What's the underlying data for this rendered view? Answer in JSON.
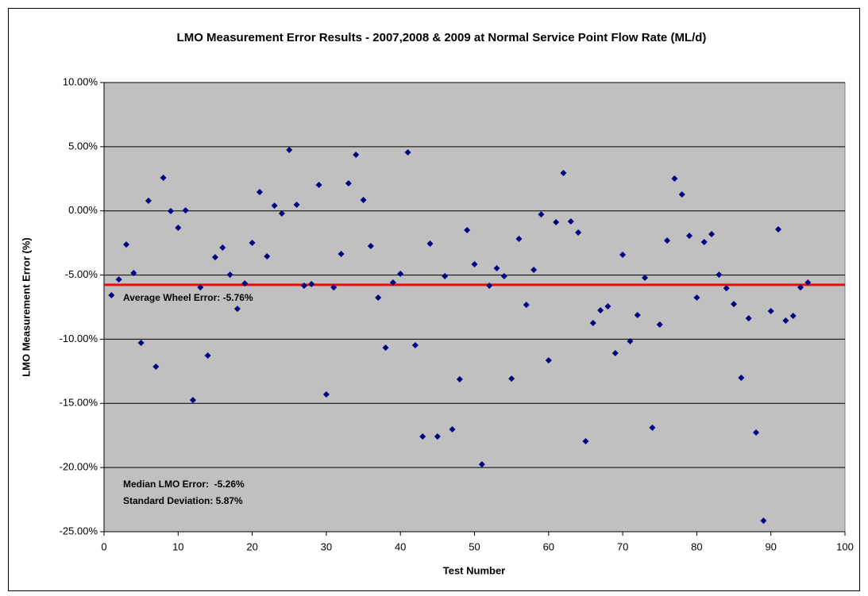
{
  "chart_data": {
    "type": "scatter",
    "title": "LMO Measurement Error Results - 2007,2008 & 2009 at Normal Service Point Flow Rate (ML/d)",
    "x_label": "Test Number",
    "y_label": "LMO Measurement Error (%)",
    "xlim": [
      0,
      100
    ],
    "xticks": [
      0,
      10,
      20,
      30,
      40,
      50,
      60,
      70,
      80,
      90,
      100
    ],
    "ylim": [
      -25,
      10
    ],
    "yticks": [
      {
        "value": -25,
        "label": "-25.00%"
      },
      {
        "value": -20,
        "label": "-20.00%"
      },
      {
        "value": -15,
        "label": "-15.00%"
      },
      {
        "value": -10,
        "label": "-10.00%"
      },
      {
        "value": -5,
        "label": "-5.00%"
      },
      {
        "value": 0,
        "label": "0.00%"
      },
      {
        "value": 5,
        "label": "5.00%"
      },
      {
        "value": 10,
        "label": "10.00%"
      }
    ],
    "grid": true,
    "series": [
      {
        "color": "#000080",
        "x": [
          1,
          2,
          3,
          4,
          5,
          6,
          7,
          8,
          9,
          10,
          11,
          12,
          13,
          14,
          15,
          16,
          17,
          18,
          19,
          20,
          21,
          22,
          23,
          24,
          25,
          26,
          27,
          28,
          29,
          30,
          31,
          32,
          33,
          34,
          35,
          36,
          37,
          38,
          39,
          40,
          41,
          42,
          43,
          44,
          45,
          46,
          47,
          48,
          49,
          50,
          51,
          52,
          53,
          54,
          55,
          56,
          57,
          58,
          59,
          60,
          61,
          62,
          63,
          64,
          65,
          66,
          67,
          68,
          69,
          70,
          71,
          72,
          73,
          74,
          75,
          76,
          77,
          78,
          79,
          80,
          81,
          82,
          83,
          84,
          85,
          86,
          87,
          88,
          89,
          90,
          91,
          92,
          93,
          94,
          95
        ],
        "values": [
          -6.57,
          -5.34,
          -2.62,
          -4.84,
          -10.28,
          0.79,
          -12.14,
          2.58,
          -0.02,
          -1.32,
          0.04,
          -14.74,
          -5.96,
          -11.27,
          -3.61,
          -2.86,
          -4.97,
          -7.63,
          -5.65,
          -2.49,
          1.47,
          -3.54,
          0.41,
          -0.2,
          4.74,
          0.48,
          -5.83,
          -5.71,
          2.02,
          -14.3,
          -5.96,
          -3.36,
          2.15,
          4.37,
          0.85,
          -2.74,
          -6.76,
          -10.66,
          -5.58,
          -4.9,
          4.56,
          -10.47,
          -17.58,
          -2.55,
          -17.58,
          -5.09,
          -17.02,
          -13.12,
          -1.5,
          -4.16,
          -19.75,
          -5.83,
          -4.47,
          -5.09,
          -13.07,
          -2.18,
          -7.32,
          -4.59,
          -0.27,
          -11.65,
          -0.88,
          2.95,
          -0.82,
          -1.69,
          -17.95,
          -8.74,
          -7.75,
          -7.44,
          -11.09,
          -3.42,
          -10.16,
          -8.12,
          -5.21,
          -16.89,
          -8.86,
          -2.31,
          2.52,
          1.28,
          -1.94,
          -6.76,
          -2.43,
          -1.81,
          -4.97,
          -6.02,
          -7.26,
          -13.0,
          -8.37,
          -17.27,
          -24.14,
          -7.81,
          -1.44,
          -8.55,
          -8.18,
          -5.96,
          -5.58
        ]
      }
    ],
    "hline": {
      "value": -5.76,
      "color": "#ff0000"
    },
    "annotations": [
      "Average Wheel Error: -5.76%",
      "Median LMO Error:  -5.26%",
      "Standard Deviation: 5.87%"
    ]
  }
}
